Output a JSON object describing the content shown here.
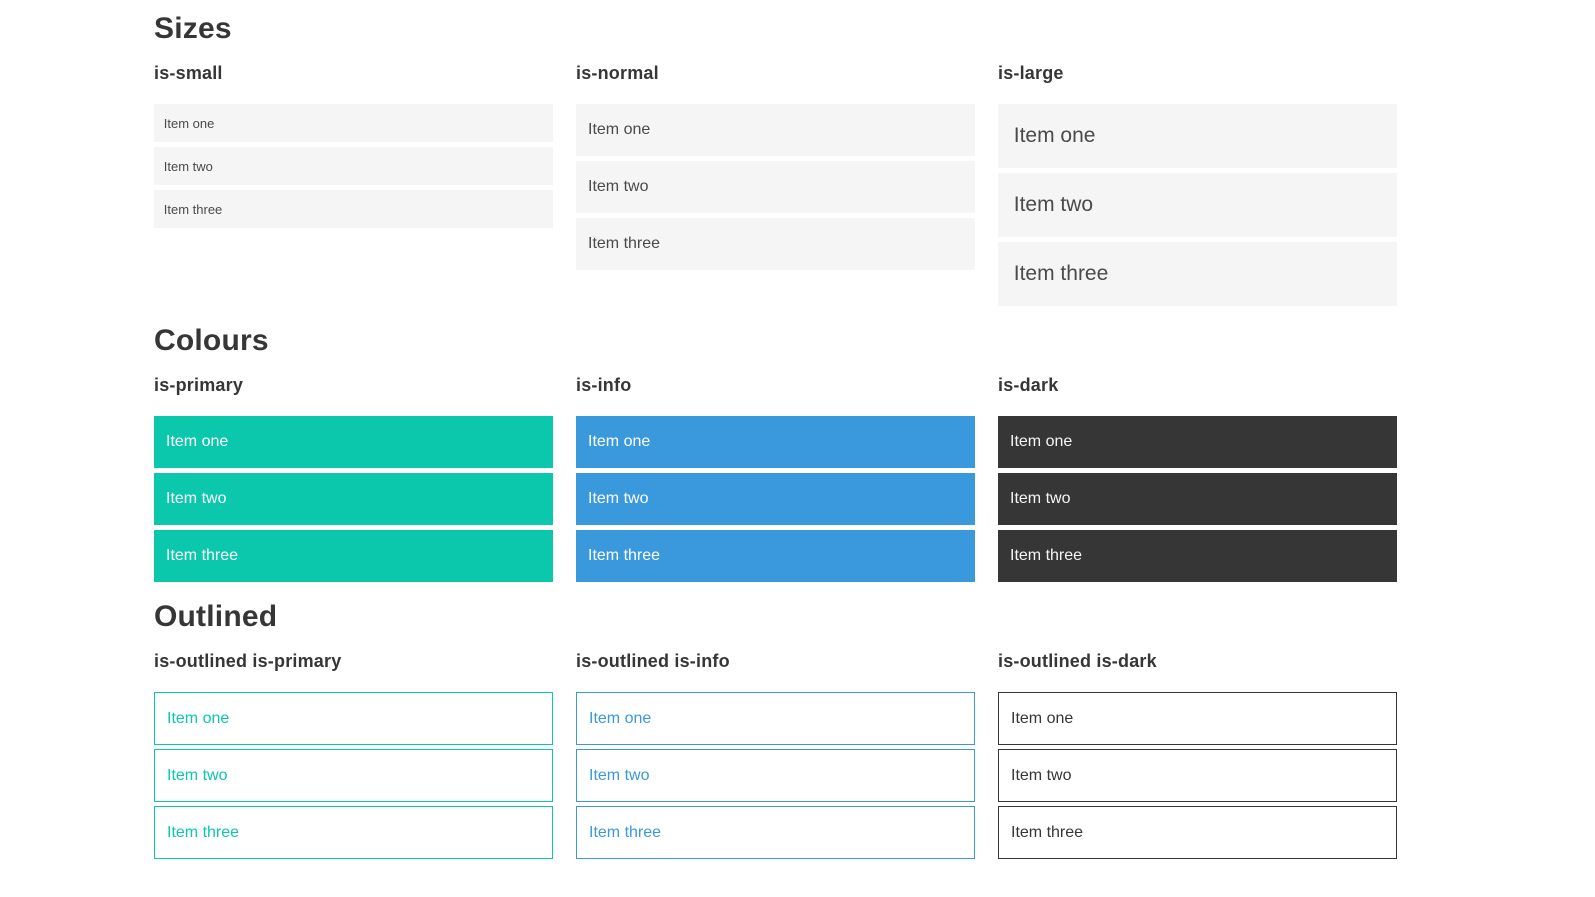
{
  "colors": {
    "primary": "#0bc8ad",
    "info": "#3a99dc",
    "dark": "#363636",
    "light_bg": "#f5f5f5",
    "item_text": "#4a4a4a",
    "heading": "#363636",
    "dark_text": "#f5f5f5"
  },
  "sections": [
    {
      "title": "Sizes",
      "groups": [
        {
          "label": "is-small",
          "size": "small",
          "variant": "light",
          "items": [
            "Item one",
            "Item two",
            "Item three"
          ]
        },
        {
          "label": "is-normal",
          "size": "normal",
          "variant": "light",
          "items": [
            "Item one",
            "Item two",
            "Item three"
          ]
        },
        {
          "label": "is-large",
          "size": "large",
          "variant": "light",
          "items": [
            "Item one",
            "Item two",
            "Item three"
          ]
        }
      ]
    },
    {
      "title": "Colours",
      "groups": [
        {
          "label": "is-primary",
          "size": "normal",
          "variant": "primary",
          "items": [
            "Item one",
            "Item two",
            "Item three"
          ]
        },
        {
          "label": "is-info",
          "size": "normal",
          "variant": "info",
          "items": [
            "Item one",
            "Item two",
            "Item three"
          ]
        },
        {
          "label": "is-dark",
          "size": "normal",
          "variant": "dark",
          "items": [
            "Item one",
            "Item two",
            "Item three"
          ]
        }
      ]
    },
    {
      "title": "Outlined",
      "groups": [
        {
          "label": "is-outlined is-primary",
          "size": "normal",
          "variant": "outlined-primary",
          "items": [
            "Item one",
            "Item two",
            "Item three"
          ]
        },
        {
          "label": "is-outlined is-info",
          "size": "normal",
          "variant": "outlined-info",
          "items": [
            "Item one",
            "Item two",
            "Item three"
          ]
        },
        {
          "label": "is-outlined is-dark",
          "size": "normal",
          "variant": "outlined-dark",
          "items": [
            "Item one",
            "Item two",
            "Item three"
          ]
        }
      ]
    }
  ]
}
